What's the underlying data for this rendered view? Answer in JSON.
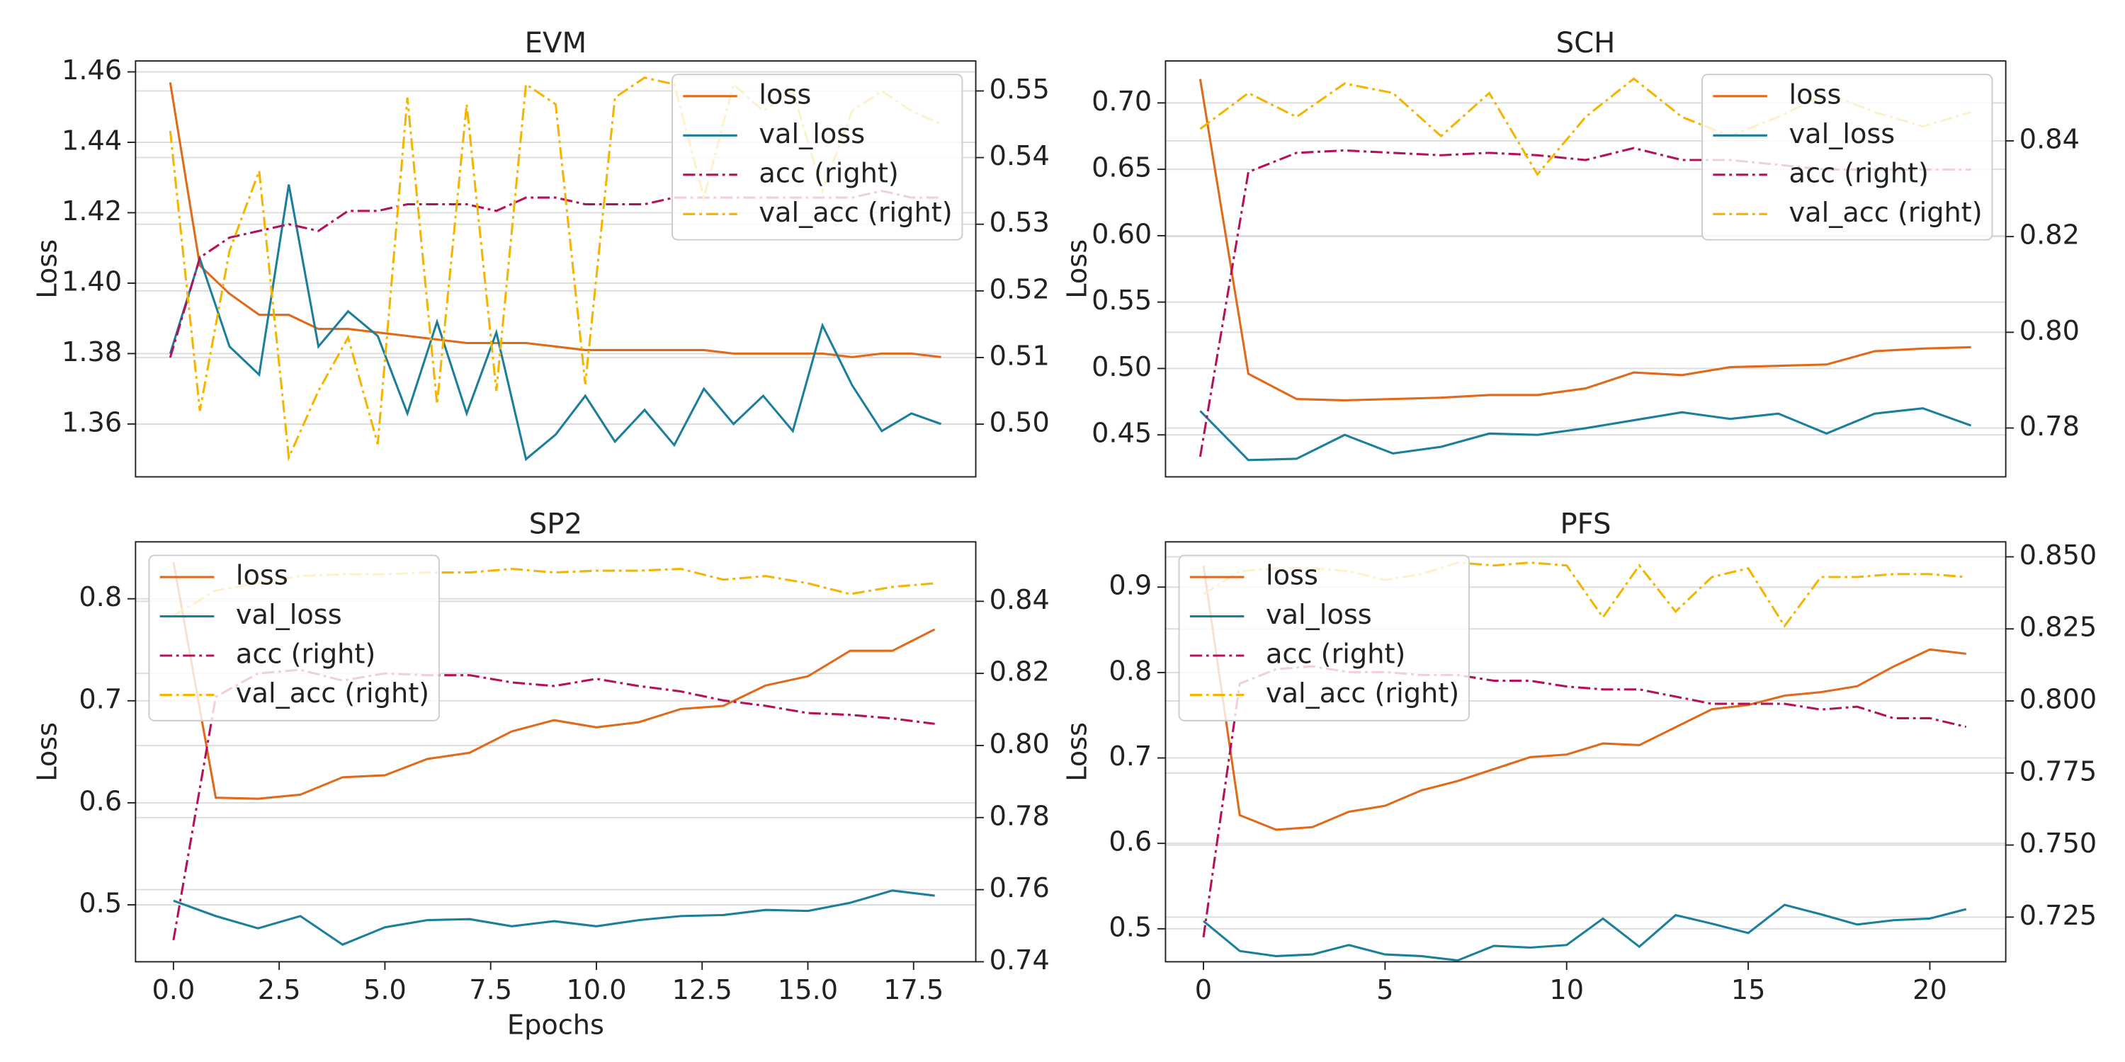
{
  "chart_data": [
    {
      "type": "line",
      "title": "EVM",
      "ylabel": "Loss",
      "legend": "upper right",
      "grid": true,
      "ylim": [
        1.345,
        1.4631
      ],
      "yticks": [
        1.36,
        1.38,
        {
          "value": 1.4,
          "label": "1.40"
        },
        1.42,
        1.44,
        1.46
      ],
      "y2lim": [
        0.4921,
        0.5545
      ],
      "y2ticks": [
        {
          "value": 0.5,
          "label": "0.50"
        },
        0.51,
        0.52,
        0.53,
        0.54,
        0.55
      ],
      "series": [
        {
          "name": "loss",
          "color": "#e0691a",
          "linestyle": "solid",
          "values": [
            1.457,
            1.405,
            1.397,
            1.391,
            1.391,
            1.387,
            1.387,
            1.386,
            1.385,
            1.384,
            1.383,
            1.383,
            1.383,
            1.382,
            1.381,
            1.381,
            1.381,
            1.381,
            1.381,
            1.38,
            1.38,
            1.38,
            1.38,
            1.379,
            1.38,
            1.38,
            1.379
          ]
        },
        {
          "name": "val_loss",
          "color": "#1b7f9b",
          "linestyle": "solid",
          "values": [
            1.38,
            1.407,
            1.382,
            1.374,
            1.428,
            1.382,
            1.392,
            1.385,
            1.363,
            1.389,
            1.363,
            1.386,
            1.35,
            1.357,
            1.368,
            1.355,
            1.364,
            1.354,
            1.37,
            1.36,
            1.368,
            1.358,
            1.388,
            1.371,
            1.358,
            1.363,
            1.36
          ]
        },
        {
          "name": "acc (right)",
          "color": "#b5105a",
          "linestyle": "dashdot",
          "axis": "y2",
          "values": [
            0.51,
            0.525,
            0.528,
            0.529,
            0.53,
            0.529,
            0.532,
            0.532,
            0.533,
            0.533,
            0.533,
            0.532,
            0.534,
            0.534,
            0.533,
            0.533,
            0.533,
            0.534,
            0.534,
            0.534,
            0.534,
            0.534,
            0.534,
            0.534,
            0.535,
            0.534,
            0.534
          ]
        },
        {
          "name": "val_acc (right)",
          "color": "#f5b400",
          "linestyle": "dashdot",
          "axis": "y2",
          "values": [
            0.544,
            0.502,
            0.526,
            0.538,
            0.495,
            0.505,
            0.513,
            0.497,
            0.549,
            0.503,
            0.548,
            0.505,
            0.551,
            0.548,
            0.506,
            0.549,
            0.552,
            0.551,
            0.534,
            0.551,
            0.547,
            0.55,
            0.535,
            0.547,
            0.55,
            0.547,
            0.545
          ]
        }
      ]
    },
    {
      "type": "line",
      "title": "SCH",
      "ylabel": "Loss",
      "legend": "upper right",
      "grid": true,
      "ylim": [
        0.4184,
        0.7316
      ],
      "yticks": [
        0.45,
        {
          "value": 0.5,
          "label": "0.50"
        },
        0.55,
        {
          "value": 0.6,
          "label": "0.60"
        },
        0.65,
        {
          "value": 0.7,
          "label": "0.70"
        }
      ],
      "y2lim": [
        0.7698,
        0.8567
      ],
      "y2ticks": [
        0.78,
        {
          "value": 0.8,
          "label": "0.80"
        },
        0.82,
        0.84
      ],
      "series": [
        {
          "name": "loss",
          "color": "#e0691a",
          "linestyle": "solid",
          "values": [
            0.718,
            0.496,
            0.477,
            0.476,
            0.477,
            0.478,
            0.48,
            0.48,
            0.485,
            0.497,
            0.495,
            0.501,
            0.502,
            0.503,
            0.513,
            0.515,
            0.516
          ]
        },
        {
          "name": "val_loss",
          "color": "#1b7f9b",
          "linestyle": "solid",
          "values": [
            0.468,
            0.431,
            0.432,
            0.45,
            0.436,
            0.441,
            0.451,
            0.45,
            0.455,
            0.461,
            0.467,
            0.462,
            0.466,
            0.451,
            0.466,
            0.47,
            0.457
          ]
        },
        {
          "name": "acc (right)",
          "color": "#b5105a",
          "linestyle": "dashdot",
          "axis": "y2",
          "values": [
            0.774,
            0.8335,
            0.8375,
            0.838,
            0.8375,
            0.837,
            0.8375,
            0.837,
            0.836,
            0.8385,
            0.836,
            0.836,
            0.835,
            0.834,
            0.834,
            0.834,
            0.834
          ]
        },
        {
          "name": "val_acc (right)",
          "color": "#f5b400",
          "linestyle": "dashdot",
          "axis": "y2",
          "values": [
            0.8425,
            0.85,
            0.845,
            0.852,
            0.85,
            0.841,
            0.85,
            0.833,
            0.845,
            0.853,
            0.845,
            0.841,
            0.845,
            0.85,
            0.846,
            0.843,
            0.846
          ]
        }
      ]
    },
    {
      "type": "line",
      "title": "SP2",
      "ylabel": "Loss",
      "xlabel": "Epochs",
      "legend": "upper left",
      "grid": true,
      "x": [
        0,
        1,
        2,
        3,
        4,
        5,
        6,
        7,
        8,
        9,
        10,
        11,
        12,
        13,
        14,
        15,
        16,
        17,
        18
      ],
      "xlim": [
        -0.897,
        18.97
      ],
      "xticks": [
        {
          "value": 0,
          "label": "0.0"
        },
        2.5,
        {
          "value": 5,
          "label": "5.0"
        },
        7.5,
        {
          "value": 10,
          "label": "10.0"
        },
        12.5,
        {
          "value": 15,
          "label": "15.0"
        },
        17.5
      ],
      "ylim": [
        0.4442,
        0.8558
      ],
      "yticks": [
        0.5,
        0.6,
        0.7,
        0.8
      ],
      "y2lim": [
        0.74,
        0.8565
      ],
      "y2ticks": [
        0.74,
        0.76,
        0.78,
        {
          "value": 0.8,
          "label": "0.80"
        },
        0.82,
        0.84
      ],
      "series": [
        {
          "name": "loss",
          "color": "#e0691a",
          "linestyle": "solid",
          "values": [
            0.836,
            0.605,
            0.604,
            0.608,
            0.625,
            0.627,
            0.643,
            0.649,
            0.67,
            0.681,
            0.674,
            0.679,
            0.692,
            0.695,
            0.715,
            0.724,
            0.749,
            0.749,
            0.77
          ]
        },
        {
          "name": "val_loss",
          "color": "#1b7f9b",
          "linestyle": "solid",
          "values": [
            0.504,
            0.489,
            0.477,
            0.489,
            0.461,
            0.478,
            0.485,
            0.486,
            0.479,
            0.484,
            0.479,
            0.485,
            0.489,
            0.49,
            0.495,
            0.494,
            0.502,
            0.514,
            0.509
          ]
        },
        {
          "name": "acc (right)",
          "color": "#b5105a",
          "linestyle": "dashdot",
          "axis": "y2",
          "values": [
            0.746,
            0.8135,
            0.82,
            0.821,
            0.818,
            0.82,
            0.8195,
            0.8195,
            0.8175,
            0.8165,
            0.8185,
            0.8165,
            0.815,
            0.8125,
            0.811,
            0.809,
            0.8085,
            0.8075,
            0.806
          ]
        },
        {
          "name": "val_acc (right)",
          "color": "#f5b400",
          "linestyle": "dashdot",
          "axis": "y2",
          "values": [
            0.836,
            0.843,
            0.845,
            0.847,
            0.8475,
            0.8475,
            0.848,
            0.848,
            0.849,
            0.848,
            0.8485,
            0.8485,
            0.849,
            0.846,
            0.847,
            0.845,
            0.842,
            0.844,
            0.845
          ]
        }
      ]
    },
    {
      "type": "line",
      "title": "PFS",
      "ylabel": "Loss",
      "legend": "upper left",
      "grid": true,
      "x": [
        0,
        1,
        2,
        3,
        4,
        5,
        6,
        7,
        8,
        9,
        10,
        11,
        12,
        13,
        14,
        15,
        16,
        17,
        18,
        19,
        20,
        21
      ],
      "xlim": [
        -1.045,
        22.09
      ],
      "xticks": [
        0,
        5,
        10,
        15,
        20
      ],
      "ylim": [
        0.4614,
        0.953
      ],
      "yticks": [
        0.5,
        0.6,
        0.7,
        0.8,
        0.9
      ],
      "y2lim": [
        0.7095,
        0.8552
      ],
      "y2ticks": [
        0.725,
        {
          "value": 0.75,
          "label": "0.750"
        },
        0.775,
        {
          "value": 0.8,
          "label": "0.800"
        },
        0.825,
        {
          "value": 0.85,
          "label": "0.850"
        }
      ],
      "series": [
        {
          "name": "loss",
          "color": "#e0691a",
          "linestyle": "solid",
          "values": [
            0.925,
            0.633,
            0.616,
            0.619,
            0.637,
            0.644,
            0.662,
            0.673,
            0.687,
            0.701,
            0.704,
            0.717,
            0.715,
            0.736,
            0.757,
            0.762,
            0.773,
            0.777,
            0.784,
            0.807,
            0.827,
            0.822
          ]
        },
        {
          "name": "val_loss",
          "color": "#1b7f9b",
          "linestyle": "solid",
          "values": [
            0.509,
            0.474,
            0.468,
            0.47,
            0.481,
            0.47,
            0.468,
            0.463,
            0.48,
            0.478,
            0.481,
            0.512,
            0.479,
            0.516,
            0.506,
            0.495,
            0.528,
            0.517,
            0.505,
            0.51,
            0.512,
            0.523
          ]
        },
        {
          "name": "acc (right)",
          "color": "#b5105a",
          "linestyle": "dashdot",
          "axis": "y2",
          "values": [
            0.718,
            0.806,
            0.811,
            0.812,
            0.81,
            0.81,
            0.809,
            0.809,
            0.807,
            0.807,
            0.805,
            0.804,
            0.804,
            0.8015,
            0.799,
            0.799,
            0.799,
            0.797,
            0.798,
            0.794,
            0.794,
            0.791
          ]
        },
        {
          "name": "val_acc (right)",
          "color": "#f5b400",
          "linestyle": "dashdot",
          "axis": "y2",
          "values": [
            0.837,
            0.845,
            0.846,
            0.846,
            0.845,
            0.842,
            0.844,
            0.848,
            0.847,
            0.848,
            0.847,
            0.829,
            0.847,
            0.831,
            0.843,
            0.846,
            0.826,
            0.843,
            0.843,
            0.844,
            0.844,
            0.843
          ]
        }
      ]
    }
  ]
}
